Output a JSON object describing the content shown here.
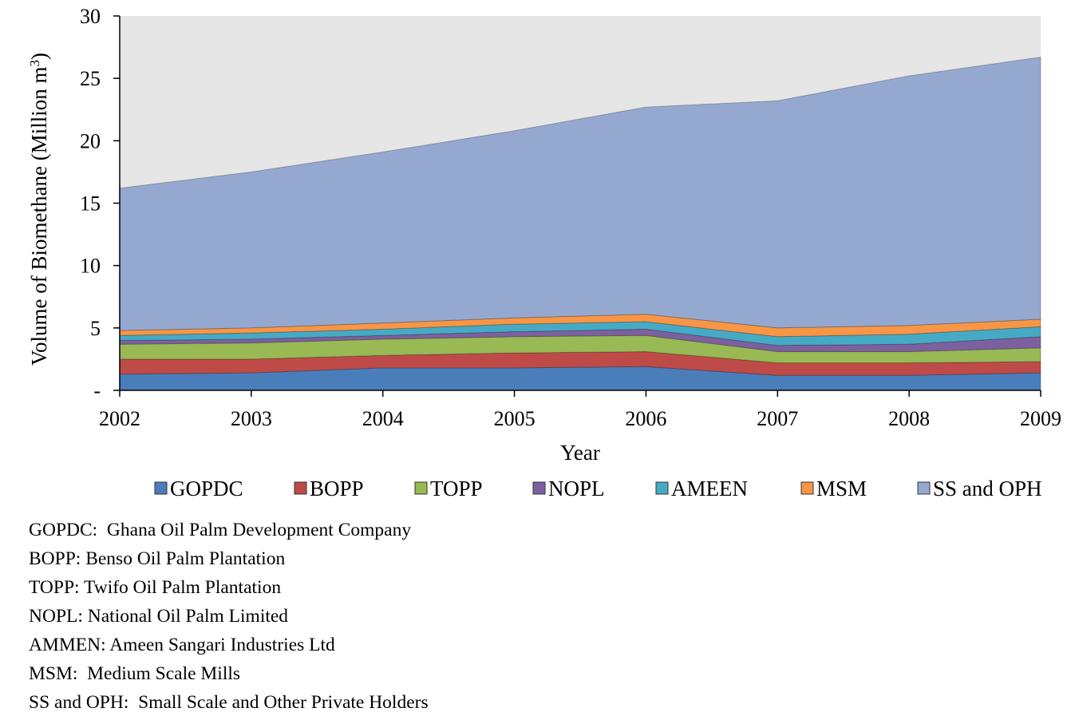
{
  "chart_data": {
    "type": "area",
    "stacked": true,
    "title": "",
    "xlabel": "Year",
    "ylabel": "Volume of Biomethane (Million m³)",
    "x": [
      "2002",
      "2003",
      "2004",
      "2005",
      "2006",
      "2007",
      "2008",
      "2009"
    ],
    "ylim": [
      0,
      30
    ],
    "yticks": [
      0,
      5,
      10,
      15,
      20,
      25,
      30
    ],
    "ytick_labels": [
      "-",
      "5",
      "10",
      "15",
      "20",
      "25",
      "30"
    ],
    "grid": false,
    "legend_position": "bottom",
    "plot_background": "#e6e6e6",
    "series": [
      {
        "name": "GOPDC",
        "color": "#4a7ebb",
        "values": [
          1.3,
          1.4,
          1.8,
          1.8,
          1.9,
          1.2,
          1.2,
          1.4
        ]
      },
      {
        "name": "BOPP",
        "color": "#be4b48",
        "values": [
          1.2,
          1.1,
          1.0,
          1.2,
          1.2,
          1.0,
          1.0,
          0.9
        ]
      },
      {
        "name": "TOPP",
        "color": "#98b954",
        "values": [
          1.2,
          1.3,
          1.3,
          1.3,
          1.3,
          0.9,
          0.9,
          1.1
        ]
      },
      {
        "name": "NOPL",
        "color": "#7d60a0",
        "values": [
          0.3,
          0.3,
          0.3,
          0.4,
          0.5,
          0.5,
          0.6,
          0.9
        ]
      },
      {
        "name": "AMEEN",
        "color": "#46aac5",
        "values": [
          0.4,
          0.5,
          0.5,
          0.6,
          0.6,
          0.7,
          0.8,
          0.8
        ]
      },
      {
        "name": "MSM",
        "color": "#f79646",
        "values": [
          0.4,
          0.4,
          0.5,
          0.5,
          0.6,
          0.7,
          0.7,
          0.6
        ]
      },
      {
        "name": "SS and OPH",
        "color": "#95a9d0",
        "values": [
          11.4,
          12.5,
          13.7,
          15.0,
          16.6,
          18.2,
          20.0,
          21.0
        ]
      }
    ],
    "notes": [
      "GOPDC:  Ghana Oil Palm Development Company",
      "BOPP: Benso Oil Palm Plantation",
      "TOPP: Twifo Oil Palm Plantation",
      "NOPL: National Oil Palm Limited",
      "AMMEN: Ameen Sangari Industries Ltd",
      "MSM:  Medium Scale Mills",
      "SS and OPH:  Small Scale and Other Private Holders"
    ]
  }
}
